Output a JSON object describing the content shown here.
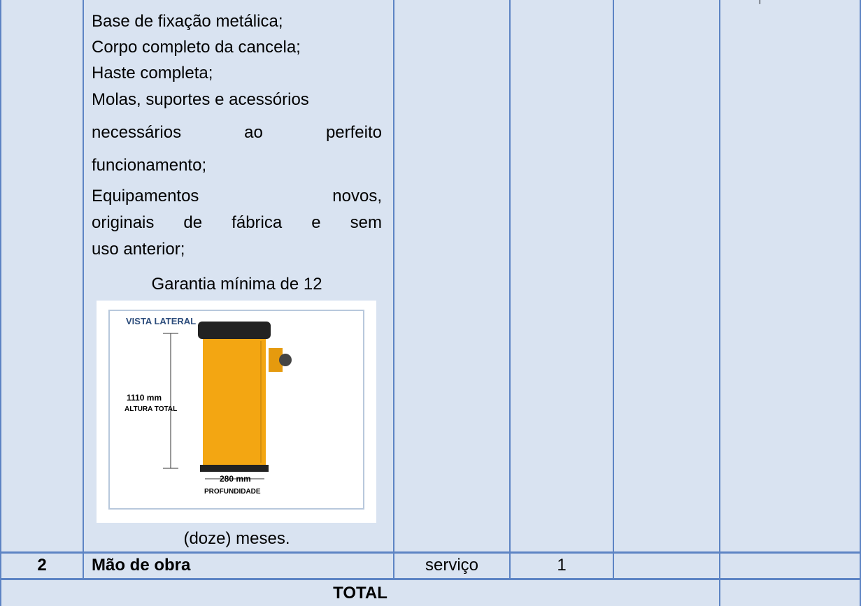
{
  "table": {
    "rows": [
      {
        "description_lines": [
          "Base de fixação metálica;",
          "Corpo completo da cancela;",
          "Haste completa;",
          "Molas, suportes e acessórios",
          "necessários ao perfeito",
          "funcionamento;",
          "Equipamentos novos,",
          "originais de fábrica e sem",
          "uso anterior;",
          "Garantia mínima de 12",
          "(doze) meses."
        ],
        "image_labels": {
          "view": "VISTA LATERAL",
          "height": "1110 mm",
          "height_caption": "ALTURA TOTAL",
          "depth": "280 mm",
          "depth_caption": "PROFUNDIDADE"
        }
      },
      {
        "item": "2",
        "description": "Mão de obra",
        "unit": "serviço",
        "quantity": "1"
      }
    ],
    "total_label": "TOTAL"
  }
}
